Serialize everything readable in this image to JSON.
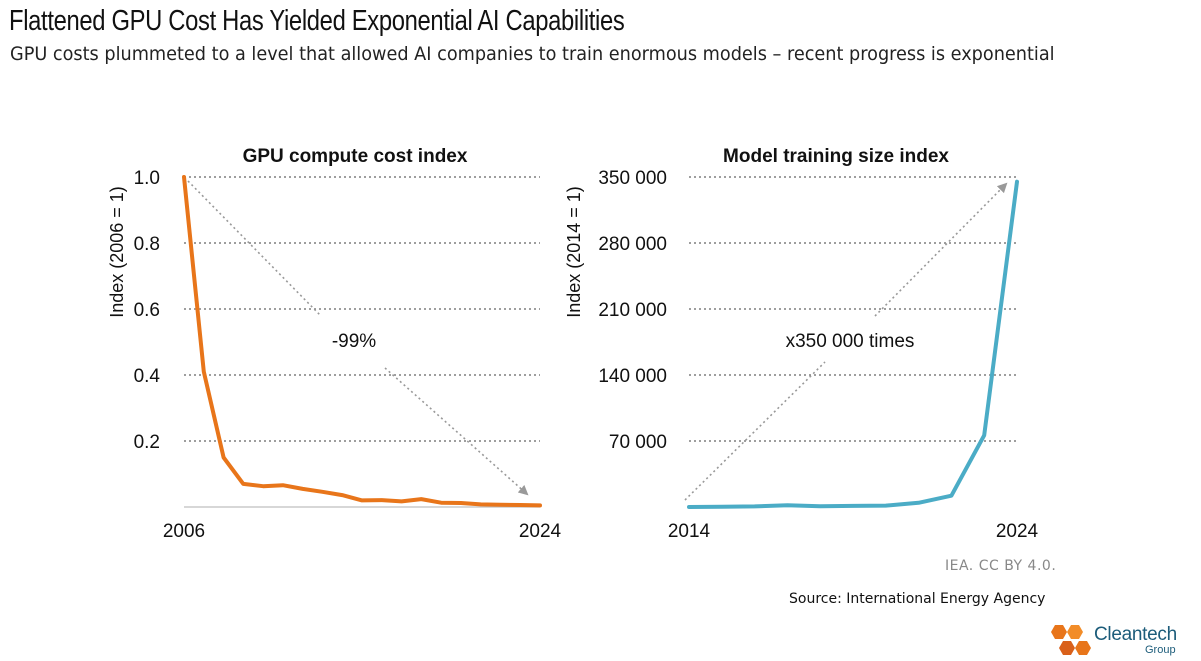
{
  "header": {
    "title": "Flattened GPU Cost Has Yielded Exponential AI Capabilities",
    "subtitle": "GPU costs plummeted to a level that allowed AI companies to train enormous models – recent progress is exponential"
  },
  "chart_data": [
    {
      "type": "line",
      "title": "GPU compute cost index",
      "ylabel": "Index (2006 = 1)",
      "xlabel": "",
      "x_tick_labels": [
        "2006",
        "2024"
      ],
      "y_tick_labels": [
        "1.0",
        "0.8",
        "0.6",
        "0.4",
        "0.2"
      ],
      "y_ticks": [
        1.0,
        0.8,
        0.6,
        0.4,
        0.2
      ],
      "xlim": [
        2006,
        2024
      ],
      "ylim": [
        0,
        1.0
      ],
      "grid": "horizontal dotted",
      "color": "#e8751a",
      "annotation": "-99%",
      "series": [
        {
          "x": [
            2006,
            2007,
            2008,
            2009,
            2010,
            2011,
            2012,
            2013,
            2014,
            2015,
            2016,
            2017,
            2018,
            2019,
            2020,
            2021,
            2022,
            2023,
            2024
          ],
          "values": [
            1.0,
            0.41,
            0.15,
            0.07,
            0.063,
            0.066,
            0.055,
            0.046,
            0.036,
            0.02,
            0.021,
            0.017,
            0.024,
            0.013,
            0.012,
            0.008,
            0.007,
            0.006,
            0.005
          ]
        }
      ]
    },
    {
      "type": "line",
      "title": "Model training size index",
      "ylabel": "Index (2014 = 1)",
      "xlabel": "",
      "x_tick_labels": [
        "2014",
        "2024"
      ],
      "y_tick_labels": [
        "350 000",
        "280 000",
        "210 000",
        "140 000",
        "70 000"
      ],
      "y_ticks": [
        350000,
        280000,
        210000,
        140000,
        70000
      ],
      "xlim": [
        2014,
        2024
      ],
      "ylim": [
        0,
        350000
      ],
      "grid": "horizontal dotted",
      "color": "#4bacc6",
      "annotation": "x350 000 times",
      "series": [
        {
          "x": [
            2014,
            2015,
            2016,
            2017,
            2018,
            2019,
            2020,
            2021,
            2022,
            2023,
            2024
          ],
          "values": [
            1,
            300,
            600,
            1800,
            800,
            1200,
            1500,
            4500,
            12000,
            76000,
            345000
          ]
        }
      ]
    }
  ],
  "footer": {
    "attribution": "IEA. CC BY 4.0.",
    "source": "Source: International Energy Agency"
  },
  "logo": {
    "name": "Cleantech",
    "sub": "Group",
    "colors": [
      "#e8751a",
      "#f28c28",
      "#d9601a"
    ]
  }
}
